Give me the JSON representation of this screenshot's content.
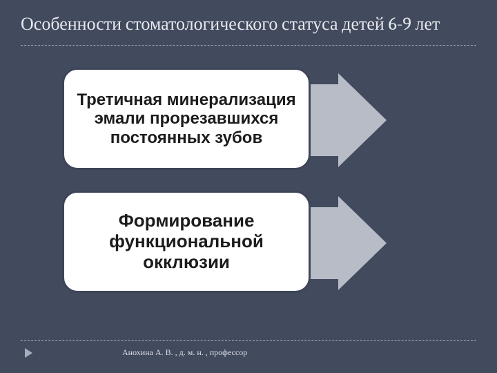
{
  "title": "Особенности стоматологического статуса детей 6-9 лет",
  "boxes": {
    "box1": "Третичная минерализация эмали прорезавшихся постоянных зубов",
    "box2": "Формирование функциональной окклюзии"
  },
  "footer": "Анохина А. В. , д. м. н. , профессор",
  "style": {
    "background_color": "#424a5e",
    "title_color": "#e6e8ec",
    "title_fontsize": 26,
    "dash_color": "#a7adba",
    "arrow_fill": "#b7bcc7",
    "box_bg": "#ffffff",
    "box_border": "#3d4458",
    "box_border_width": 3,
    "box_radius": 22,
    "box_text_color": "#1c1c1c",
    "box1_fontsize": 24,
    "box2_fontsize": 26,
    "footer_color": "#dcdfe6",
    "footer_fontsize": 12,
    "bullet_color": "#a7adba"
  }
}
